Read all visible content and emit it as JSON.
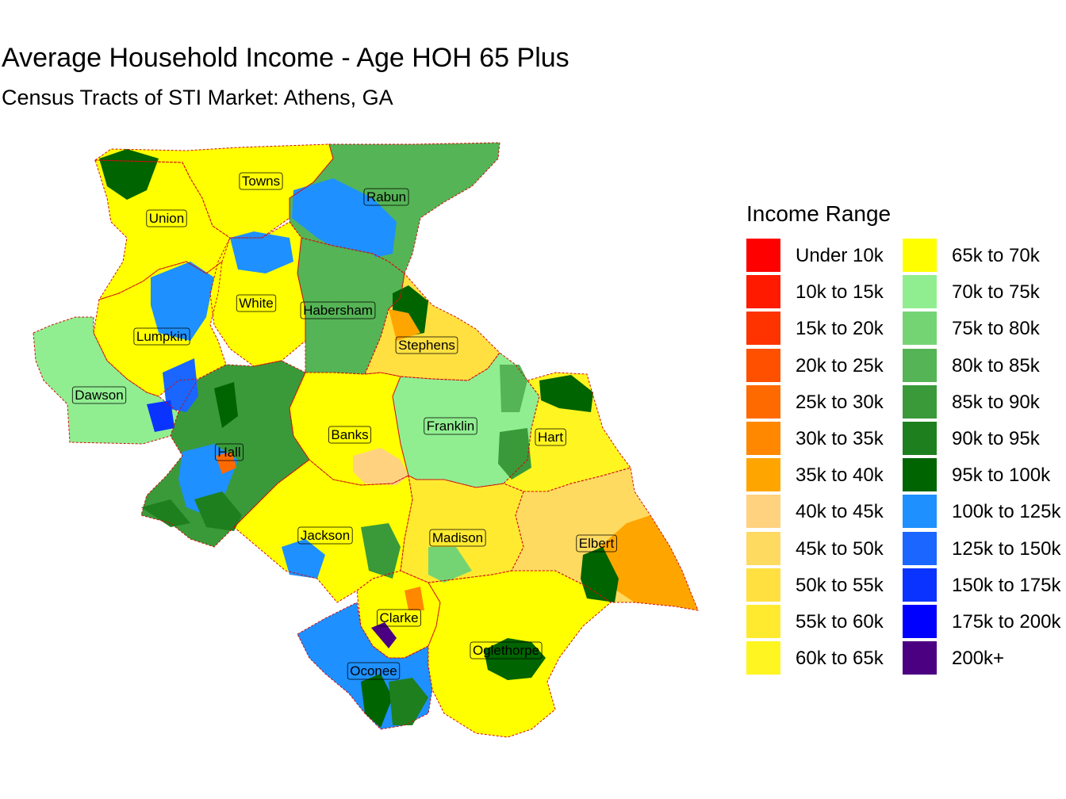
{
  "title": "Average Household Income - Age HOH 65 Plus",
  "subtitle": "Census Tracts of STI Market: Athens, GA",
  "legend": {
    "title": "Income Range",
    "items": [
      {
        "label": "Under 10k",
        "color": "#FF0000"
      },
      {
        "label": "10k to 15k",
        "color": "#FF1A00"
      },
      {
        "label": "15k to 20k",
        "color": "#FF3300"
      },
      {
        "label": "20k to 25k",
        "color": "#FF5000"
      },
      {
        "label": "25k to 30k",
        "color": "#FF6A00"
      },
      {
        "label": "30k to 35k",
        "color": "#FF8800"
      },
      {
        "label": "35k to 40k",
        "color": "#FFA500"
      },
      {
        "label": "40k to 45k",
        "color": "#FFD280"
      },
      {
        "label": "45k to 50k",
        "color": "#FFDA60"
      },
      {
        "label": "50k to 55k",
        "color": "#FFE040"
      },
      {
        "label": "55k to 60k",
        "color": "#FFEA30"
      },
      {
        "label": "60k to 65k",
        "color": "#FFF520"
      },
      {
        "label": "65k to 70k",
        "color": "#FFFF00"
      },
      {
        "label": "70k to 75k",
        "color": "#90EE90"
      },
      {
        "label": "75k to 80k",
        "color": "#74D474"
      },
      {
        "label": "80k to 85k",
        "color": "#55B455"
      },
      {
        "label": "85k to 90k",
        "color": "#3A9A3A"
      },
      {
        "label": "90k to 95k",
        "color": "#1E7F1E"
      },
      {
        "label": "95k to 100k",
        "color": "#006400"
      },
      {
        "label": "100k to 125k",
        "color": "#1E90FF"
      },
      {
        "label": "125k to 150k",
        "color": "#1A66FF"
      },
      {
        "label": "150k to 175k",
        "color": "#0A33FF"
      },
      {
        "label": "175k to 200k",
        "color": "#0000FF"
      },
      {
        "label": "200k+",
        "color": "#4B0082"
      }
    ]
  },
  "counties": [
    {
      "name": "Towns",
      "income": "65k to 70k"
    },
    {
      "name": "Rabun",
      "income": "80k to 85k"
    },
    {
      "name": "Union",
      "income": "65k to 70k"
    },
    {
      "name": "White",
      "income": "65k to 70k"
    },
    {
      "name": "Habersham",
      "income": "80k to 85k"
    },
    {
      "name": "Lumpkin",
      "income": "65k to 70k"
    },
    {
      "name": "Stephens",
      "income": "50k to 55k"
    },
    {
      "name": "Dawson",
      "income": "70k to 75k"
    },
    {
      "name": "Banks",
      "income": "65k to 70k"
    },
    {
      "name": "Franklin",
      "income": "70k to 75k"
    },
    {
      "name": "Hart",
      "income": "60k to 65k"
    },
    {
      "name": "Hall",
      "income": "85k to 90k"
    },
    {
      "name": "Jackson",
      "income": "65k to 70k"
    },
    {
      "name": "Madison",
      "income": "55k to 60k"
    },
    {
      "name": "Elbert",
      "income": "45k to 50k"
    },
    {
      "name": "Clarke",
      "income": "65k to 70k"
    },
    {
      "name": "Oglethorpe",
      "income": "65k to 70k"
    },
    {
      "name": "Oconee",
      "income": "100k to 125k"
    }
  ]
}
